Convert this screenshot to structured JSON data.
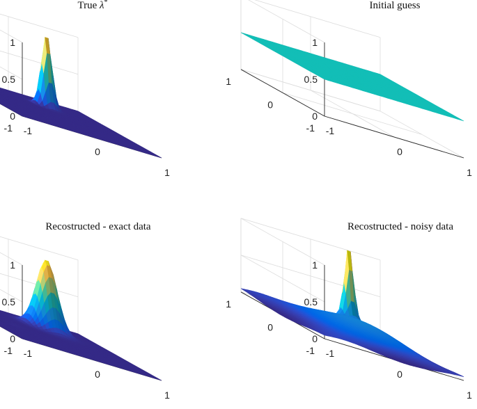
{
  "chart_data": [
    {
      "type": "surface",
      "title": "True λ*",
      "title_main": "True ",
      "title_symbol": "λ",
      "title_sup": "*",
      "surface": "true",
      "x_range": [
        -1,
        1
      ],
      "y_range": [
        -1,
        1
      ],
      "z_range": [
        0,
        1
      ],
      "x_ticks": [
        "-1",
        "0",
        "1"
      ],
      "y_ticks": [
        "-1",
        "0",
        "1"
      ],
      "z_ticks": [
        "0",
        "0.5",
        "1"
      ],
      "peak": {
        "x": 0.25,
        "y": 0.5,
        "z": 1.0
      },
      "background_z": 0,
      "grid": true,
      "colormap": "parula"
    },
    {
      "type": "surface",
      "title": "Initial guess",
      "title_main": "Initial guess",
      "title_symbol": "",
      "title_sup": "",
      "surface": "flat",
      "x_range": [
        -1,
        1
      ],
      "y_range": [
        -1,
        1
      ],
      "z_range": [
        0,
        1
      ],
      "x_ticks": [
        "-1",
        "0",
        "1"
      ],
      "y_ticks": [
        "-1",
        "0",
        "1"
      ],
      "z_ticks": [
        "0",
        "0.5",
        "1"
      ],
      "constant_z": 0.5,
      "grid": true,
      "colormap": "parula"
    },
    {
      "type": "surface",
      "title": "Recostructed - exact data",
      "title_main": "Recostructed - exact data",
      "title_symbol": "",
      "title_sup": "",
      "surface": "exact",
      "x_range": [
        -1,
        1
      ],
      "y_range": [
        -1,
        1
      ],
      "z_range": [
        0,
        1
      ],
      "x_ticks": [
        "-1",
        "0",
        "1"
      ],
      "y_ticks": [
        "-1",
        "0",
        "1"
      ],
      "z_ticks": [
        "0",
        "0.5",
        "1"
      ],
      "peak": {
        "x": 0.25,
        "y": 0.5,
        "z": 0.95
      },
      "background_z": 0,
      "grid": true,
      "colormap": "parula"
    },
    {
      "type": "surface",
      "title": "Recostructed - noisy data",
      "title_main": "Recostructed - noisy data",
      "title_symbol": "",
      "title_sup": "",
      "surface": "noisy",
      "x_range": [
        -1,
        1
      ],
      "y_range": [
        -1,
        1
      ],
      "z_range": [
        0,
        1
      ],
      "x_ticks": [
        "-1",
        "0",
        "1"
      ],
      "y_ticks": [
        "-1",
        "0",
        "1"
      ],
      "z_ticks": [
        "0",
        "0.5",
        "1"
      ],
      "peak": {
        "x": 0.25,
        "y": 0.5,
        "z": 1.0
      },
      "background_z": 0.1,
      "grid": true,
      "colormap": "parula"
    }
  ]
}
